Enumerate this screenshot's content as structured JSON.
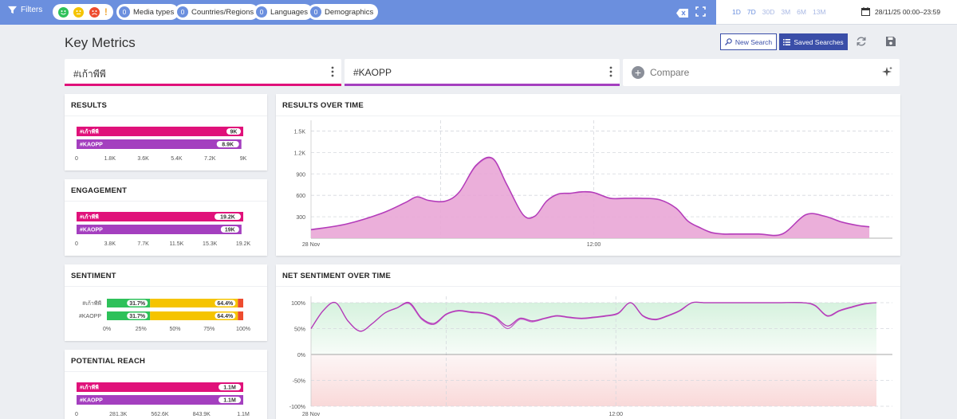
{
  "topbar": {
    "filters_label": "Filters",
    "pills": [
      {
        "count": "0",
        "label": "Media types"
      },
      {
        "count": "0",
        "label": "Countries/Regions"
      },
      {
        "count": "0",
        "label": "Languages"
      },
      {
        "count": "0",
        "label": "Demographics"
      }
    ],
    "ranges": [
      "1D",
      "7D",
      "30D",
      "3M",
      "6M",
      "13M"
    ],
    "date_range": "28/11/25 00:00–23:59"
  },
  "header": {
    "title": "Key Metrics",
    "new_search": "New Search",
    "saved_searches": "Saved Searches"
  },
  "searches": [
    {
      "label": "#เก้าพีพี",
      "color": "#e0117a"
    },
    {
      "label": "#KAOPP",
      "color": "#a43fbf"
    }
  ],
  "compare_label": "Compare",
  "colors": {
    "series1": "#e0117a",
    "series2": "#a43fbf",
    "positive": "#2ec15a",
    "neutral": "#f5c400",
    "negative": "#ee4c2f",
    "area": "#e9a6d6",
    "line": "#b33ab8"
  },
  "results": {
    "title": "RESULTS",
    "bars": [
      {
        "label": "#เก้าพีพี",
        "value": 9000,
        "display": "9K"
      },
      {
        "label": "#KAOPP",
        "value": 8900,
        "display": "8.9K"
      }
    ],
    "max": 9000,
    "ticks": [
      "0",
      "1.8K",
      "3.6K",
      "5.4K",
      "7.2K",
      "9K"
    ]
  },
  "engagement": {
    "title": "ENGAGEMENT",
    "bars": [
      {
        "label": "#เก้าพีพี",
        "value": 19200,
        "display": "19.2K"
      },
      {
        "label": "#KAOPP",
        "value": 19000,
        "display": "19K"
      }
    ],
    "max": 19200,
    "ticks": [
      "0",
      "3.8K",
      "7.7K",
      "11.5K",
      "15.3K",
      "19.2K"
    ]
  },
  "sentiment": {
    "title": "SENTIMENT",
    "rows": [
      {
        "label": "#เก้าพีพี",
        "positive": 31.7,
        "neutral": 64.4,
        "negative": 3.9,
        "pos_label": "31.7%",
        "neu_label": "64.4%"
      },
      {
        "label": "#KAOPP",
        "positive": 31.7,
        "neutral": 64.4,
        "negative": 3.9,
        "pos_label": "31.7%",
        "neu_label": "64.4%"
      }
    ],
    "ticks": [
      "0%",
      "25%",
      "50%",
      "75%",
      "100%"
    ]
  },
  "reach": {
    "title": "POTENTIAL REACH",
    "bars": [
      {
        "label": "#เก้าพีพี",
        "value": 1.1,
        "display": "1.1M"
      },
      {
        "label": "#KAOPP",
        "value": 1.1,
        "display": "1.1M"
      }
    ],
    "max": 1.1,
    "ticks": [
      "0",
      "281.3K",
      "562.6K",
      "843.9K",
      "1.1M"
    ]
  },
  "chart_data": [
    {
      "type": "area",
      "title": "RESULTS OVER TIME",
      "x_ticks": [
        "28 Nov",
        "12:00"
      ],
      "y_ticks": [
        "300",
        "600",
        "900",
        "1.2K",
        "1.5K"
      ],
      "ylim": [
        0,
        1500
      ],
      "x": [
        0,
        1.5,
        3,
        4,
        4.5,
        5,
        5.7,
        6.3,
        7,
        7.7,
        8.3,
        9,
        9.5,
        10,
        10.5,
        11,
        11.5,
        12,
        12.7,
        13.3,
        14,
        14.8,
        15.5,
        16,
        16.5,
        17,
        17.5,
        18,
        19,
        20,
        21,
        21.8,
        22.5,
        23.2,
        23.7
      ],
      "values": [
        120,
        200,
        350,
        500,
        580,
        530,
        520,
        650,
        1020,
        1120,
        760,
        330,
        310,
        520,
        620,
        630,
        650,
        640,
        560,
        560,
        560,
        540,
        420,
        240,
        150,
        80,
        60,
        60,
        60,
        60,
        330,
        310,
        230,
        180,
        160
      ],
      "series": [
        {
          "name": "#เก้าพีพี",
          "values": [
            120,
            200,
            350,
            500,
            580,
            530,
            520,
            650,
            1020,
            1120,
            760,
            330,
            310,
            520,
            620,
            630,
            650,
            640,
            560,
            560,
            560,
            540,
            420,
            240,
            150,
            80,
            60,
            60,
            60,
            60,
            330,
            310,
            230,
            180,
            160
          ]
        },
        {
          "name": "#KAOPP",
          "values": [
            115,
            195,
            345,
            495,
            575,
            525,
            515,
            645,
            1010,
            1110,
            750,
            325,
            305,
            515,
            615,
            625,
            645,
            635,
            555,
            555,
            555,
            535,
            415,
            235,
            145,
            75,
            55,
            55,
            55,
            55,
            325,
            305,
            225,
            175,
            155
          ]
        }
      ]
    },
    {
      "type": "area",
      "title": "NET SENTIMENT OVER TIME",
      "x_ticks": [
        "28 Nov",
        "12:00"
      ],
      "y_ticks": [
        "100%",
        "50%",
        "0%",
        "-50%",
        "-100%"
      ],
      "ylim": [
        -100,
        100
      ],
      "x": [
        0,
        0.5,
        1,
        1.5,
        2,
        2.5,
        3,
        3.5,
        4,
        4.5,
        5,
        5.5,
        6,
        6.5,
        7,
        7.5,
        8,
        8.5,
        9,
        9.5,
        10,
        10.5,
        11,
        11.5,
        12,
        12.5,
        13,
        13.5,
        14,
        14.5,
        15,
        15.5,
        16,
        16.5,
        17,
        17.5,
        18,
        19,
        20,
        20.5,
        21,
        21.5,
        22,
        22.5,
        23
      ],
      "series": [
        {
          "name": "#เก้าพีพี",
          "values": [
            50,
            85,
            100,
            65,
            45,
            60,
            80,
            90,
            100,
            70,
            60,
            78,
            85,
            82,
            80,
            72,
            55,
            70,
            65,
            70,
            75,
            72,
            70,
            72,
            75,
            80,
            100,
            75,
            68,
            75,
            85,
            100,
            100,
            100,
            100,
            100,
            100,
            100,
            100,
            95,
            75,
            85,
            92,
            98,
            100
          ]
        },
        {
          "name": "#KAOPP",
          "values": [
            50,
            85,
            100,
            65,
            45,
            60,
            80,
            90,
            98,
            68,
            58,
            77,
            84,
            81,
            79,
            70,
            50,
            68,
            63,
            69,
            74,
            71,
            69,
            71,
            74,
            79,
            100,
            74,
            67,
            74,
            84,
            100,
            100,
            100,
            100,
            100,
            100,
            100,
            100,
            94,
            74,
            84,
            91,
            97,
            100
          ]
        }
      ]
    }
  ]
}
